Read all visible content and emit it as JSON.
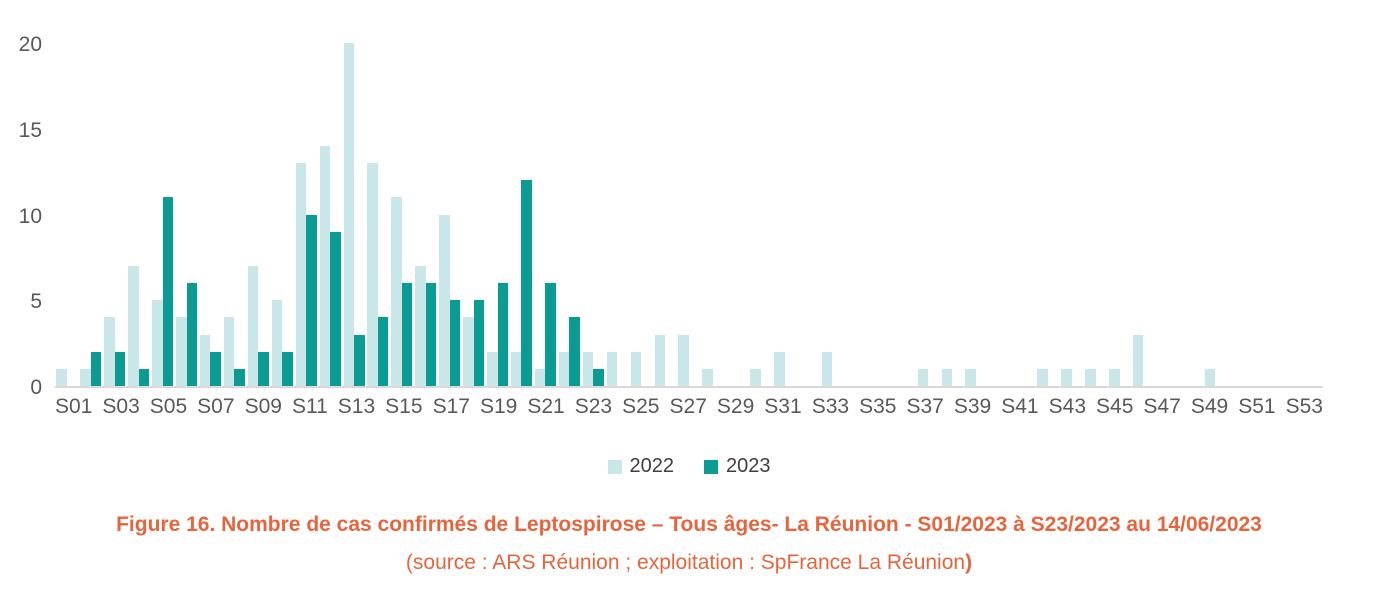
{
  "colors": {
    "series_2022": "#c9e7e8",
    "series_2023": "#0a9b93",
    "caption_orange": "#e7653d",
    "axis_text": "#595959",
    "legend_text": "#3f3f3f",
    "axis_line": "#d9d9d9"
  },
  "chart_data": {
    "type": "bar",
    "title": "",
    "xlabel": "",
    "ylabel": "",
    "ylim": [
      0,
      20
    ],
    "yticks": [
      0,
      5,
      10,
      15,
      20
    ],
    "grid": false,
    "legend_position": "bottom-center",
    "x_tick_step": 2,
    "categories": [
      "S01",
      "S02",
      "S03",
      "S04",
      "S05",
      "S06",
      "S07",
      "S08",
      "S09",
      "S10",
      "S11",
      "S12",
      "S13",
      "S14",
      "S15",
      "S16",
      "S17",
      "S18",
      "S19",
      "S20",
      "S21",
      "S22",
      "S23",
      "S24",
      "S25",
      "S26",
      "S27",
      "S28",
      "S29",
      "S30",
      "S31",
      "S32",
      "S33",
      "S34",
      "S35",
      "S36",
      "S37",
      "S38",
      "S39",
      "S40",
      "S41",
      "S42",
      "S43",
      "S44",
      "S45",
      "S46",
      "S47",
      "S48",
      "S49",
      "S50",
      "S51",
      "S52",
      "S53"
    ],
    "series": [
      {
        "name": "2022",
        "color": "#c9e7e8",
        "values": [
          1,
          1,
          4,
          7,
          5,
          4,
          3,
          4,
          7,
          5,
          13,
          14,
          20,
          13,
          11,
          7,
          10,
          4,
          2,
          2,
          1,
          2,
          2,
          2,
          2,
          3,
          3,
          1,
          0,
          1,
          2,
          0,
          2,
          0,
          0,
          0,
          1,
          1,
          1,
          0,
          0,
          1,
          1,
          1,
          1,
          3,
          0,
          0,
          1,
          0,
          0,
          0,
          0
        ]
      },
      {
        "name": "2023",
        "color": "#0a9b93",
        "values": [
          0,
          2,
          2,
          1,
          11,
          6,
          2,
          1,
          2,
          2,
          10,
          9,
          3,
          4,
          6,
          6,
          5,
          5,
          6,
          12,
          6,
          4,
          1,
          0,
          0,
          0,
          0,
          0,
          0,
          0,
          0,
          0,
          0,
          0,
          0,
          0,
          0,
          0,
          0,
          0,
          0,
          0,
          0,
          0,
          0,
          0,
          0,
          0,
          0,
          0,
          0,
          0,
          0
        ]
      }
    ]
  },
  "legend": {
    "items": [
      {
        "label": "2022",
        "color": "#c9e7e8"
      },
      {
        "label": "2023",
        "color": "#0a9b93"
      }
    ]
  },
  "caption": {
    "line1": "Figure 16. Nombre de cas confirmés de Leptospirose – Tous âges- La Réunion - S01/2023 à S23/2023 au 14/06/2023",
    "line2": "(source : ARS Réunion ; exploitation : SpFrance La Réunion",
    "line2_bold": ")"
  }
}
